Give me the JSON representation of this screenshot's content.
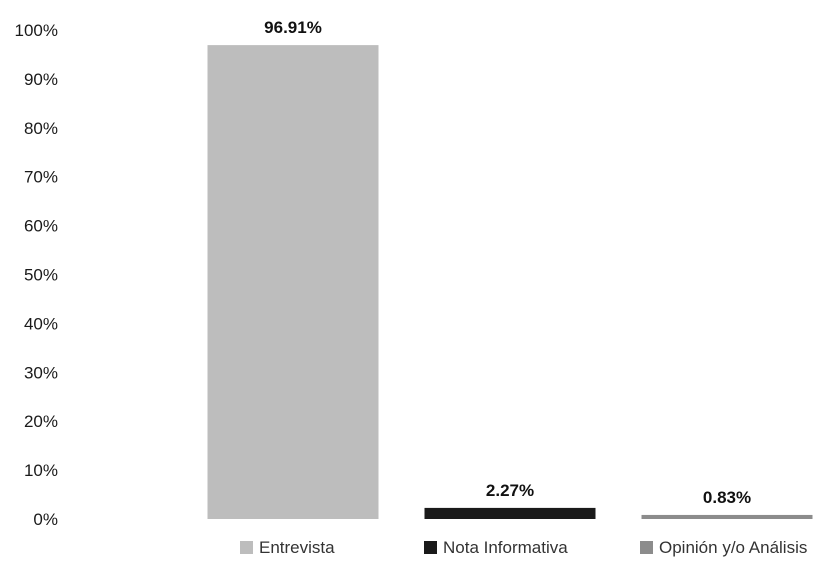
{
  "chart_data": {
    "type": "bar",
    "title": "",
    "xlabel": "",
    "ylabel": "",
    "ylim": [
      0,
      100
    ],
    "y_ticks": [
      "0%",
      "10%",
      "20%",
      "30%",
      "40%",
      "50%",
      "60%",
      "70%",
      "80%",
      "90%",
      "100%"
    ],
    "grid": false,
    "legend_position": "bottom",
    "categories": [
      "Entrevista",
      "Nota Informativa",
      "Opinión y/o Análisis"
    ],
    "values": [
      96.91,
      2.27,
      0.83
    ],
    "data_labels": [
      "96.91%",
      "2.27%",
      "0.83%"
    ],
    "colors": [
      "#bdbdbd",
      "#1a1a1a",
      "#8c8c8c"
    ]
  }
}
